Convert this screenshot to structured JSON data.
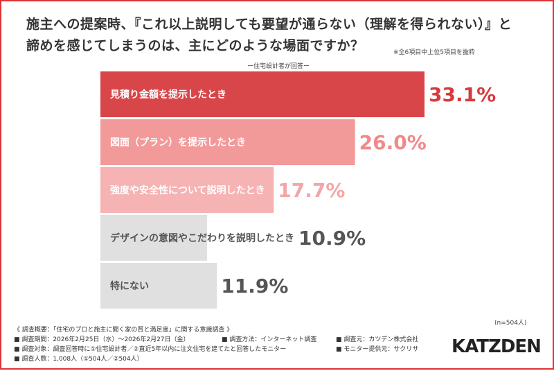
{
  "title_line1": "施主への提案時、『これ以上説明しても要望が通らない（理解を得られない）』と",
  "title_line2": "諦めを感じてしまうのは、主にどのような場面ですか？",
  "note": "※全6項目中上位5項目を抜粋",
  "subtitle": "ー住宅設計者が回答ー",
  "chart_data": {
    "type": "bar",
    "orientation": "horizontal",
    "categories": [
      "見積り金額を提示したとき",
      "図面（プラン）を提示したとき",
      "強度や安全性について説明したとき",
      "デザインの意図やこだわりを説明したとき",
      "特にない"
    ],
    "values": [
      33.1,
      26.0,
      17.7,
      10.9,
      11.9
    ],
    "value_labels": [
      "33.1%",
      "26.0%",
      "17.7%",
      "10.9%",
      "11.9%"
    ],
    "bar_colors": [
      "#d9464a",
      "#f29a9a",
      "#f6b3b3",
      "#e0e0e0",
      "#e0e0e0"
    ],
    "value_colors": [
      "#d63a3e",
      "#f08a8a",
      "#f4a6a6",
      "#555555",
      "#555555"
    ],
    "bar_label_colors": [
      "#ffffff",
      "#ffffff",
      "#ffffff",
      "#555555",
      "#555555"
    ],
    "xlim": [
      0,
      33.1
    ]
  },
  "sample_note": "(n=504人)",
  "footer": {
    "overview": "《 調査概要：「住宅のプロと施主に聞く家の質と満足度」に関する意識調査 》",
    "period": "■ 調査期間：2026年2月25日（水）〜2026年2月27日（金）",
    "method": "■ 調査方法：インターネット調査",
    "source": "■ 調査元：カツデン株式会社",
    "target": "■ 調査対象：調査回答時に①住宅設計者／②直近5年以内に注文住宅を建てたと回答したモニター",
    "provider": "■ モニター提供元：サクリサ",
    "count": "■ 調査人数：1,008人（①504人／②504人）"
  },
  "logo": "KATZDEN"
}
